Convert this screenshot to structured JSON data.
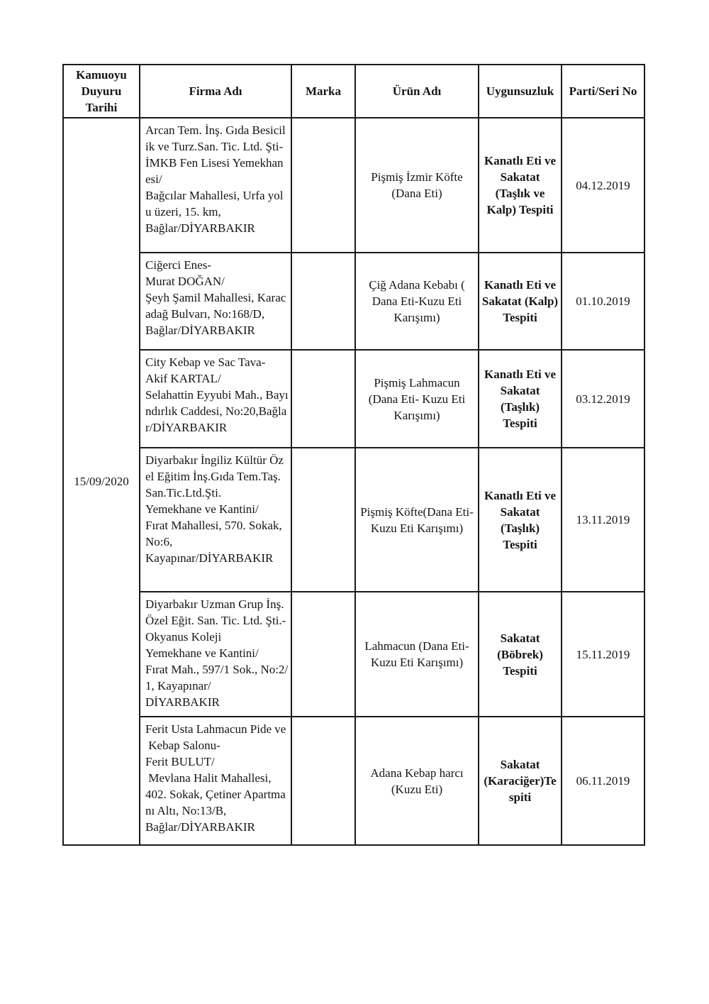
{
  "table": {
    "headers": [
      "Kamuoyu\nDuyuru\nTarihi",
      "Firma Adı",
      "Marka",
      "Ürün Adı",
      "Uygunsuzluk",
      "Parti/Seri No"
    ],
    "announcement_date": "15/09/2020",
    "rows": [
      {
        "firma": "Arcan Tem. İnş. Gıda Besicil\nik ve Turz.San. Tic. Ltd. Şti-\nİMKB Fen Lisesi Yemekhan\nesi/\nBağcılar Mahallesi, Urfa yol\nu üzeri, 15. km,\nBağlar/DİYARBAKIR",
        "marka": "",
        "urun": "Pişmiş İzmir Köfte\n(Dana Eti)",
        "uygunsuzluk": "Kanatlı Eti ve\nSakatat\n(Taşlık ve\nKalp) Tespiti",
        "parti": "04.12.2019"
      },
      {
        "firma": "Ciğerci Enes-\nMurat DOĞAN/\nŞeyh Şamil Mahallesi, Karac\nadağ Bulvarı, No:168/D,\nBağlar/DİYARBAKIR",
        "marka": "",
        "urun": "Çiğ Adana Kebabı (\nDana Eti-Kuzu Eti\nKarışımı)",
        "uygunsuzluk": "Kanatlı Eti ve\nSakatat (Kalp)\nTespiti",
        "parti": "01.10.2019"
      },
      {
        "firma": "City Kebap ve Sac Tava-\nAkif KARTAL/\nSelahattin Eyyubi Mah., Bayı\nndırlık Caddesi, No:20,Bağla\nr/DİYARBAKIR",
        "marka": "",
        "urun": "Pişmiş Lahmacun\n(Dana Eti- Kuzu Eti\nKarışımı)",
        "uygunsuzluk": "Kanatlı Eti ve\nSakatat\n(Taşlık)\nTespiti",
        "parti": "03.12.2019"
      },
      {
        "firma": "Diyarbakır İngiliz Kültür Öz\nel Eğitim İnş.Gıda Tem.Taş.\nSan.Tic.Ltd.Şti.\nYemekhane ve Kantini/\nFırat Mahallesi, 570. Sokak,\nNo:6,\nKayapınar/DİYARBAKIR",
        "marka": "",
        "urun": "Pişmiş Köfte(Dana Eti-\nKuzu Eti Karışımı)",
        "uygunsuzluk": "Kanatlı Eti ve\nSakatat\n(Taşlık)\nTespiti",
        "parti": "13.11.2019"
      },
      {
        "firma": "Diyarbakır Uzman Grup İnş.\nÖzel Eğit. San. Tic. Ltd. Şti.-\nOkyanus Koleji\nYemekhane ve Kantini/\nFırat Mah., 597/1 Sok., No:2/\n1, Kayapınar/\nDİYARBAKIR",
        "marka": "",
        "urun": "Lahmacun (Dana Eti-\nKuzu Eti Karışımı)",
        "uygunsuzluk": "Sakatat\n(Böbrek)\nTespiti",
        "parti": "15.11.2019"
      },
      {
        "firma": "Ferit Usta Lahmacun Pide ve\n Kebap Salonu-\nFerit BULUT/\n Mevlana Halit Mahallesi,\n402. Sokak, Çetiner Apartma\nnı Altı, No:13/B,\nBağlar/DİYARBAKIR",
        "marka": "",
        "urun": "Adana Kebap harcı\n(Kuzu Eti)",
        "uygunsuzluk": "Sakatat\n(Karaciğer)Te\nspiti",
        "parti": "06.11.2019"
      }
    ]
  }
}
